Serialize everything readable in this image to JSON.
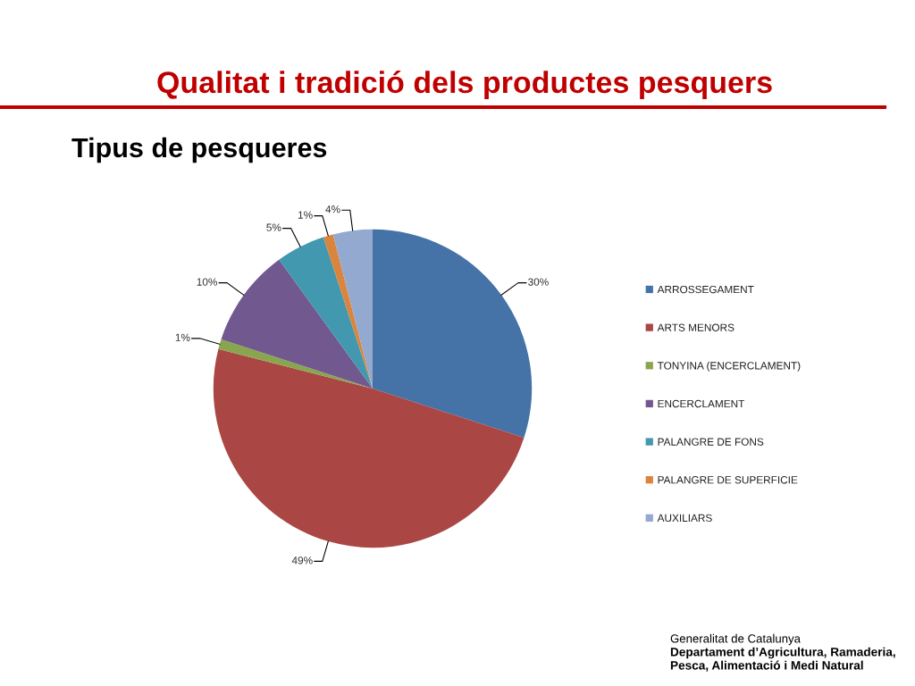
{
  "chart_data": {
    "type": "pie",
    "title": "Qualitat i tradició dels productes pesquers",
    "subtitle": "Tipus de pesqueres",
    "categories": [
      "ARROSSEGAMENT",
      "ARTS MENORS",
      "TONYINA (ENCERCLAMENT)",
      "ENCERCLAMENT",
      "PALANGRE DE FONS",
      "PALANGRE DE SUPERFICIE",
      "AUXILIARS"
    ],
    "values": [
      30,
      49,
      1,
      10,
      5,
      1,
      4
    ],
    "colors": [
      "#4572a7",
      "#aa4643",
      "#89a54e",
      "#71588f",
      "#4198af",
      "#db843d",
      "#93a9cf"
    ],
    "value_labels": [
      "30%",
      "49%",
      "1%",
      "10%",
      "5%",
      "1%",
      "4%"
    ],
    "legend": "right",
    "annotations": [
      "Generalitat de Catalunya",
      "Departament d’Agricultura, Ramaderia,",
      "Pesca, Alimentació i Medi Natural"
    ]
  }
}
